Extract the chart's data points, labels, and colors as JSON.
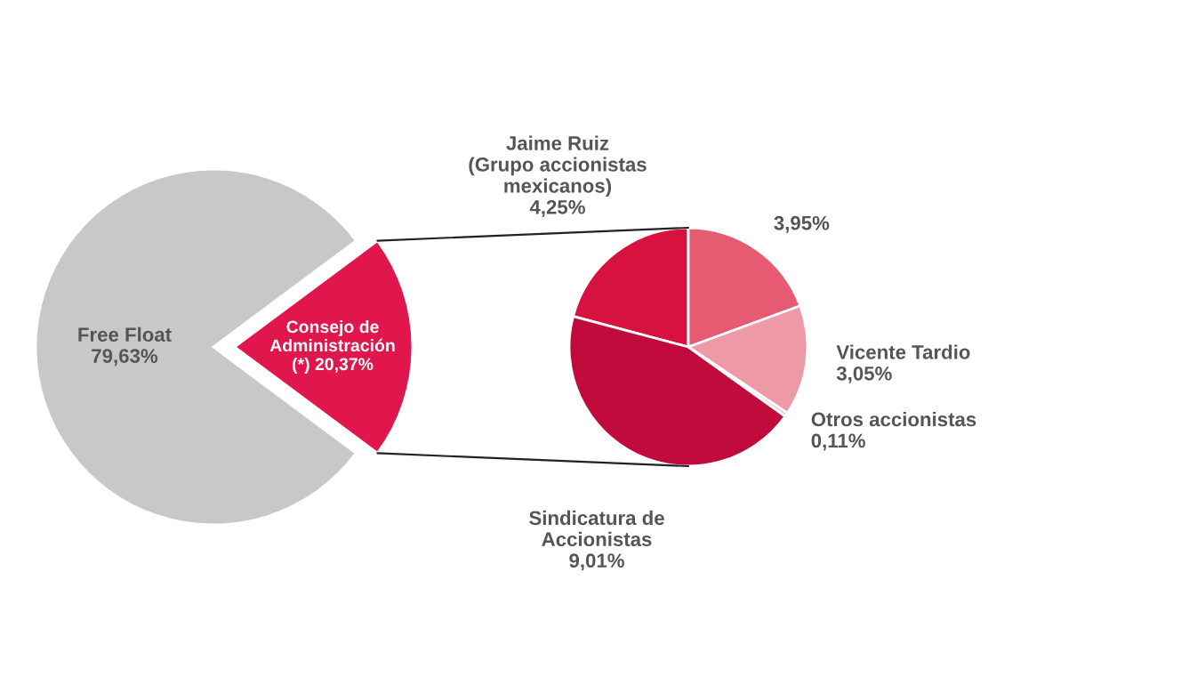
{
  "chart_data": [
    {
      "type": "pie",
      "categories": [
        "Free Float",
        "Consejo de Administración (*)"
      ],
      "values": [
        79.63,
        20.37
      ],
      "colors": [
        "#c8c8c8",
        "#e0164c"
      ],
      "value_labels": [
        "79,63%",
        "20,37%"
      ]
    },
    {
      "type": "pie",
      "categories": [
        "Jaime Ruiz\n(Grupo accionistas\nmexicanos)",
        null,
        "Vicente Tardio",
        "Otros accionistas",
        "Sindicatura de\nAccionistas"
      ],
      "values": [
        4.25,
        3.95,
        3.05,
        0.11,
        9.01
      ],
      "colors": [
        "#d8123f",
        "#e65a72",
        "#ee9aa6",
        "#f3c4cc",
        "#c00b3c"
      ],
      "value_labels": [
        "4,25%",
        "3,95%",
        "3,05%",
        "0,11%",
        "9,01%"
      ]
    }
  ]
}
